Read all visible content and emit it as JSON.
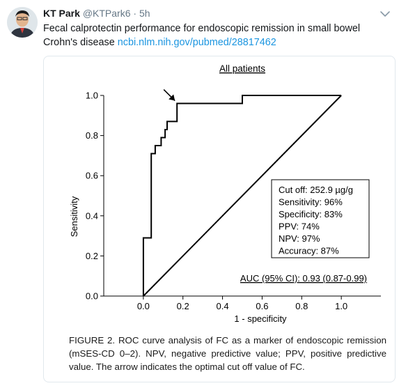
{
  "tweet": {
    "author_name": "KT Park",
    "handle": "@KTPark6",
    "separator": "·",
    "time": "5h",
    "text": "Fecal calprotectin performance for endoscopic remission in small bowel Crohn's disease ",
    "link": "ncbi.nlm.nih.gov/pubmed/28817462",
    "colors": {
      "link": "#1b95e0",
      "meta": "#657786",
      "text": "#14171a"
    }
  },
  "figure": {
    "caption": "FIGURE 2. ROC curve analysis of FC as a marker of endoscopic remission (mSES-CD 0–2). NPV, negative predictive value; PPV, positive predictive value. The arrow indicates the optimal cut off value of FC."
  },
  "chart_data": {
    "type": "line",
    "title": "All patients",
    "xlabel": "1 - specificity",
    "ylabel": "Sensitivity",
    "xlim": [
      -0.2,
      1.2
    ],
    "ylim": [
      0,
      1.0
    ],
    "xticks": [
      "0.0",
      "0.2",
      "0.4",
      "0.6",
      "0.8",
      "1.0"
    ],
    "yticks": [
      "0.0",
      "0.2",
      "0.4",
      "0.6",
      "0.8",
      "1.0"
    ],
    "grid": false,
    "series": [
      {
        "values_xy": [
          [
            0,
            0
          ],
          [
            0,
            0.29
          ],
          [
            0.04,
            0.29
          ],
          [
            0.04,
            0.71
          ],
          [
            0.06,
            0.71
          ],
          [
            0.06,
            0.75
          ],
          [
            0.08,
            0.75
          ],
          [
            0.08,
            0.75
          ],
          [
            0.09,
            0.75
          ],
          [
            0.09,
            0.79
          ],
          [
            0.11,
            0.79
          ],
          [
            0.11,
            0.83
          ],
          [
            0.12,
            0.83
          ],
          [
            0.12,
            0.87
          ],
          [
            0.17,
            0.87
          ],
          [
            0.17,
            0.96
          ],
          [
            0.5,
            0.96
          ],
          [
            0.5,
            1.0
          ],
          [
            1.0,
            1.0
          ]
        ]
      },
      {
        "values_xy": [
          [
            0,
            0
          ],
          [
            1,
            1
          ]
        ]
      }
    ],
    "annotations": {
      "arrow_target": [
        0.17,
        0.96
      ],
      "stats_box": [
        "Cut off: 252.9 µg/g",
        "Sensitivity: 96%",
        "Specificity: 83%",
        "PPV: 74%",
        "NPV: 97%",
        "Accuracy: 87%"
      ],
      "auc": "AUC (95% CI): 0.93 (0.87-0.99)"
    }
  }
}
